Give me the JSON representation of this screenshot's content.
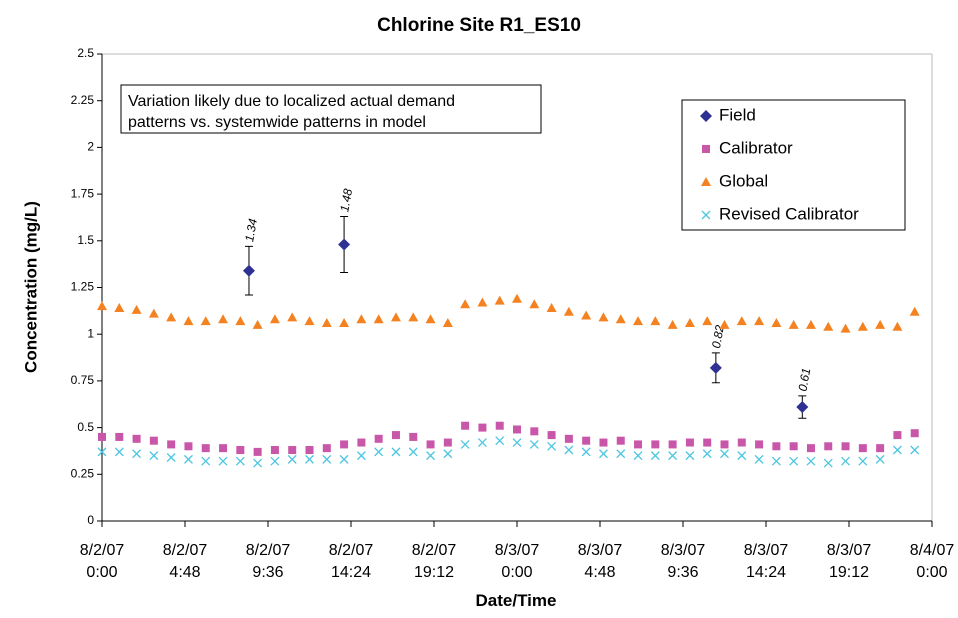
{
  "chart_data": {
    "type": "scatter",
    "title": "Chlorine Site R1_ES10",
    "x_label": "Date/Time",
    "y_label": "Concentration (mg/L)",
    "annotation": [
      "Variation likely due to localized actual demand",
      "patterns vs. systemwide patterns in model"
    ],
    "xlim": [
      0,
      48
    ],
    "ylim": [
      0,
      2.5
    ],
    "xticks": [
      {
        "value": 0,
        "label": "8/2/07 0:00"
      },
      {
        "value": 4.8,
        "label": "8/2/07 4:48"
      },
      {
        "value": 9.6,
        "label": "8/2/07 9:36"
      },
      {
        "value": 14.4,
        "label": "8/2/07 14:24"
      },
      {
        "value": 19.2,
        "label": "8/2/07 19:12"
      },
      {
        "value": 24,
        "label": "8/3/07 0:00"
      },
      {
        "value": 28.8,
        "label": "8/3/07 4:48"
      },
      {
        "value": 33.6,
        "label": "8/3/07 9:36"
      },
      {
        "value": 38.4,
        "label": "8/3/07 14:24"
      },
      {
        "value": 43.2,
        "label": "8/3/07 19:12"
      },
      {
        "value": 48,
        "label": "8/4/07 0:00"
      }
    ],
    "yticks": [
      0,
      0.25,
      0.5,
      0.75,
      1,
      1.25,
      1.5,
      1.75,
      2,
      2.25,
      2.5
    ],
    "x": [
      0,
      1,
      2,
      3,
      4,
      5,
      6,
      7,
      8,
      9,
      10,
      11,
      12,
      13,
      14,
      15,
      16,
      17,
      18,
      19,
      20,
      21,
      22,
      23,
      24,
      25,
      26,
      27,
      28,
      29,
      30,
      31,
      32,
      33,
      34,
      35,
      36,
      37,
      38,
      39,
      40,
      41,
      42,
      43,
      44,
      45,
      46,
      47
    ],
    "series": [
      {
        "name": "Field",
        "color": "#2e3192",
        "marker": "diamond",
        "x": [
          8.5,
          14,
          35.5,
          40.5
        ],
        "values": [
          1.34,
          1.48,
          0.82,
          0.61
        ],
        "errors": [
          0.13,
          0.15,
          0.08,
          0.06
        ]
      },
      {
        "name": "Calibrator",
        "color": "#c957a9",
        "marker": "square",
        "values": [
          0.45,
          0.45,
          0.44,
          0.43,
          0.41,
          0.4,
          0.39,
          0.39,
          0.38,
          0.37,
          0.38,
          0.38,
          0.38,
          0.39,
          0.41,
          0.42,
          0.44,
          0.46,
          0.45,
          0.41,
          0.42,
          0.51,
          0.5,
          0.51,
          0.49,
          0.48,
          0.46,
          0.44,
          0.43,
          0.42,
          0.43,
          0.41,
          0.41,
          0.41,
          0.42,
          0.42,
          0.41,
          0.42,
          0.41,
          0.4,
          0.4,
          0.39,
          0.4,
          0.4,
          0.39,
          0.39,
          0.46,
          0.47
        ]
      },
      {
        "name": "Global",
        "color": "#f58220",
        "marker": "triangle",
        "values": [
          1.15,
          1.14,
          1.13,
          1.11,
          1.09,
          1.07,
          1.07,
          1.08,
          1.07,
          1.05,
          1.08,
          1.09,
          1.07,
          1.06,
          1.06,
          1.08,
          1.08,
          1.09,
          1.09,
          1.08,
          1.06,
          1.16,
          1.17,
          1.18,
          1.19,
          1.16,
          1.14,
          1.12,
          1.1,
          1.09,
          1.08,
          1.07,
          1.07,
          1.05,
          1.06,
          1.07,
          1.05,
          1.07,
          1.07,
          1.06,
          1.05,
          1.05,
          1.04,
          1.03,
          1.04,
          1.05,
          1.04,
          1.12
        ]
      },
      {
        "name": "Revised Calibrator",
        "color": "#4dc6e0",
        "marker": "cross",
        "values": [
          0.37,
          0.37,
          0.36,
          0.35,
          0.34,
          0.33,
          0.32,
          0.32,
          0.32,
          0.31,
          0.32,
          0.33,
          0.33,
          0.33,
          0.33,
          0.35,
          0.37,
          0.37,
          0.37,
          0.35,
          0.36,
          0.41,
          0.42,
          0.43,
          0.42,
          0.41,
          0.4,
          0.38,
          0.37,
          0.36,
          0.36,
          0.35,
          0.35,
          0.35,
          0.35,
          0.36,
          0.36,
          0.35,
          0.33,
          0.32,
          0.32,
          0.32,
          0.31,
          0.32,
          0.32,
          0.33,
          0.38,
          0.38
        ]
      }
    ]
  }
}
